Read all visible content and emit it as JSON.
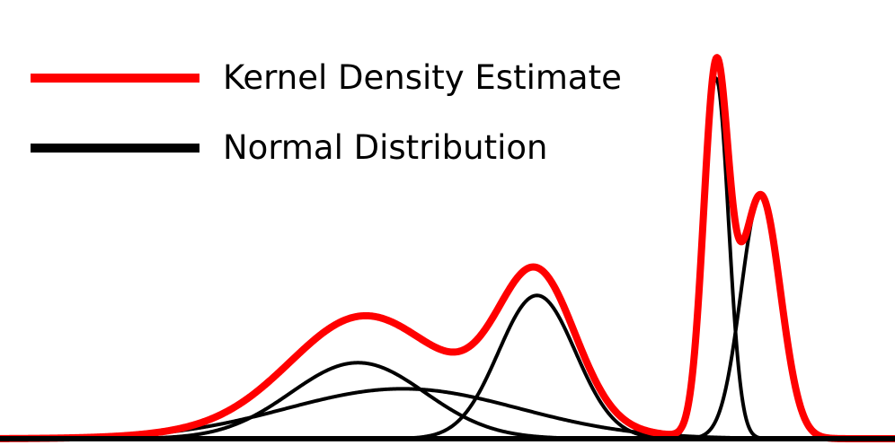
{
  "chart_data": {
    "type": "line",
    "title": "",
    "xlabel": "",
    "ylabel": "",
    "grid": false,
    "axes_visible": false,
    "legend": {
      "placement": "top-left",
      "entries": [
        {
          "label": "Kernel Density Estimate",
          "color": "#ff0000"
        },
        {
          "label": "Normal Distribution",
          "color": "#000000"
        }
      ]
    },
    "x_range": [
      0,
      100
    ],
    "y_range": [
      0,
      1
    ],
    "kde": {
      "name": "Kernel Density Estimate",
      "color": "#ff0000"
    },
    "components": [
      {
        "mu": 40.0,
        "sigma": 7.5,
        "amp": 0.175
      },
      {
        "mu": 45.0,
        "sigma": 13.0,
        "amp": 0.115
      },
      {
        "mu": 60.0,
        "sigma": 4.3,
        "amp": 0.33
      },
      {
        "mu": 80.0,
        "sigma": 1.4,
        "amp": 0.83
      },
      {
        "mu": 85.0,
        "sigma": 2.2,
        "amp": 0.56
      }
    ]
  }
}
